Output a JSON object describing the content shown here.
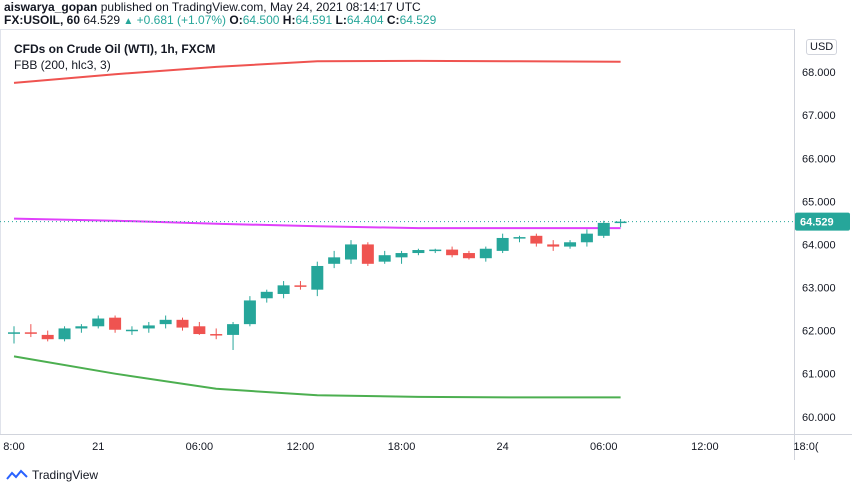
{
  "header": {
    "author": "aiswarya_gopan",
    "published_text": "published on TradingView.com, May 24, 2021 08:14:17 UTC",
    "symbol": "FX:USOIL, 60",
    "last": "64.529",
    "change": "+0.681 (+1.07%)",
    "o_label": "O:",
    "o_value": "64.500",
    "h_label": "H:",
    "h_value": "64.591",
    "l_label": "L:",
    "l_value": "64.404",
    "c_label": "C:",
    "c_value": "64.529"
  },
  "legend": {
    "title": "CFDs on Crude Oil (WTI), 1h, FXCM",
    "indicator": "FBB (200, hlc3, 3)"
  },
  "currency_button": "USD",
  "price_tag": "64.529",
  "footer": {
    "brand": "TradingView"
  },
  "colors": {
    "up": "#26a69a",
    "down": "#ef5350",
    "upper_band": "#ef5350",
    "middle_band": "#e040fb",
    "lower_band": "#4caf50",
    "grid": "#f0f3fa"
  },
  "chart_data": {
    "type": "candlestick",
    "title": "CFDs on Crude Oil (WTI), 1h, FXCM",
    "ylim": [
      59.6,
      69.0
    ],
    "y_ticks": [
      "60.000",
      "61.000",
      "62.000",
      "63.000",
      "64.000",
      "65.000",
      "66.000",
      "67.000",
      "68.000"
    ],
    "x_ticks": [
      "8:00",
      "21",
      "06:00",
      "12:00",
      "18:00",
      "24",
      "06:00",
      "12:00",
      "18:0("
    ],
    "current_price": 64.529,
    "candles": [
      {
        "o": 61.95,
        "h": 62.1,
        "l": 61.7,
        "c": 61.96
      },
      {
        "o": 61.96,
        "h": 62.15,
        "l": 61.85,
        "c": 61.95
      },
      {
        "o": 61.9,
        "h": 62.0,
        "l": 61.75,
        "c": 61.8
      },
      {
        "o": 61.8,
        "h": 62.1,
        "l": 61.75,
        "c": 62.05
      },
      {
        "o": 62.05,
        "h": 62.15,
        "l": 61.95,
        "c": 62.1
      },
      {
        "o": 62.1,
        "h": 62.35,
        "l": 62.05,
        "c": 62.28
      },
      {
        "o": 62.3,
        "h": 62.35,
        "l": 61.95,
        "c": 62.02
      },
      {
        "o": 62.0,
        "h": 62.1,
        "l": 61.9,
        "c": 62.02
      },
      {
        "o": 62.05,
        "h": 62.2,
        "l": 61.95,
        "c": 62.12
      },
      {
        "o": 62.15,
        "h": 62.35,
        "l": 62.05,
        "c": 62.25
      },
      {
        "o": 62.25,
        "h": 62.3,
        "l": 62.0,
        "c": 62.07
      },
      {
        "o": 62.1,
        "h": 62.2,
        "l": 61.9,
        "c": 61.92
      },
      {
        "o": 61.92,
        "h": 62.05,
        "l": 61.8,
        "c": 61.9
      },
      {
        "o": 61.9,
        "h": 62.2,
        "l": 61.55,
        "c": 62.15
      },
      {
        "o": 62.15,
        "h": 62.8,
        "l": 62.1,
        "c": 62.7
      },
      {
        "o": 62.75,
        "h": 62.95,
        "l": 62.65,
        "c": 62.9
      },
      {
        "o": 62.85,
        "h": 63.15,
        "l": 62.75,
        "c": 63.05
      },
      {
        "o": 63.05,
        "h": 63.15,
        "l": 62.95,
        "c": 63.03
      },
      {
        "o": 62.95,
        "h": 63.6,
        "l": 62.8,
        "c": 63.5
      },
      {
        "o": 63.55,
        "h": 63.85,
        "l": 63.45,
        "c": 63.7
      },
      {
        "o": 63.65,
        "h": 64.1,
        "l": 63.55,
        "c": 64.0
      },
      {
        "o": 64.0,
        "h": 64.05,
        "l": 63.5,
        "c": 63.55
      },
      {
        "o": 63.6,
        "h": 63.85,
        "l": 63.55,
        "c": 63.75
      },
      {
        "o": 63.7,
        "h": 63.85,
        "l": 63.55,
        "c": 63.8
      },
      {
        "o": 63.8,
        "h": 63.9,
        "l": 63.75,
        "c": 63.87
      },
      {
        "o": 63.85,
        "h": 63.9,
        "l": 63.8,
        "c": 63.88
      },
      {
        "o": 63.88,
        "h": 63.95,
        "l": 63.7,
        "c": 63.75
      },
      {
        "o": 63.8,
        "h": 63.85,
        "l": 63.65,
        "c": 63.68
      },
      {
        "o": 63.68,
        "h": 63.95,
        "l": 63.6,
        "c": 63.9
      },
      {
        "o": 63.85,
        "h": 64.25,
        "l": 63.8,
        "c": 64.15
      },
      {
        "o": 64.15,
        "h": 64.2,
        "l": 64.05,
        "c": 64.17
      },
      {
        "o": 64.2,
        "h": 64.25,
        "l": 63.95,
        "c": 64.02
      },
      {
        "o": 64.0,
        "h": 64.1,
        "l": 63.85,
        "c": 63.95
      },
      {
        "o": 63.95,
        "h": 64.1,
        "l": 63.9,
        "c": 64.05
      },
      {
        "o": 64.05,
        "h": 64.35,
        "l": 63.95,
        "c": 64.25
      },
      {
        "o": 64.2,
        "h": 64.55,
        "l": 64.15,
        "c": 64.5
      },
      {
        "o": 64.5,
        "h": 64.59,
        "l": 64.4,
        "c": 64.53
      }
    ],
    "series": [
      {
        "name": "upper",
        "x": [
          0,
          6,
          12,
          18,
          24,
          30,
          36
        ],
        "values": [
          67.75,
          67.95,
          68.12,
          68.25,
          68.26,
          68.25,
          68.24
        ]
      },
      {
        "name": "middle",
        "x": [
          0,
          6,
          12,
          18,
          24,
          30,
          36
        ],
        "values": [
          64.6,
          64.55,
          64.48,
          64.42,
          64.38,
          64.38,
          64.38
        ]
      },
      {
        "name": "lower",
        "x": [
          0,
          6,
          12,
          18,
          24,
          30,
          36
        ],
        "values": [
          61.4,
          61.0,
          60.65,
          60.5,
          60.46,
          60.45,
          60.45
        ]
      }
    ]
  }
}
